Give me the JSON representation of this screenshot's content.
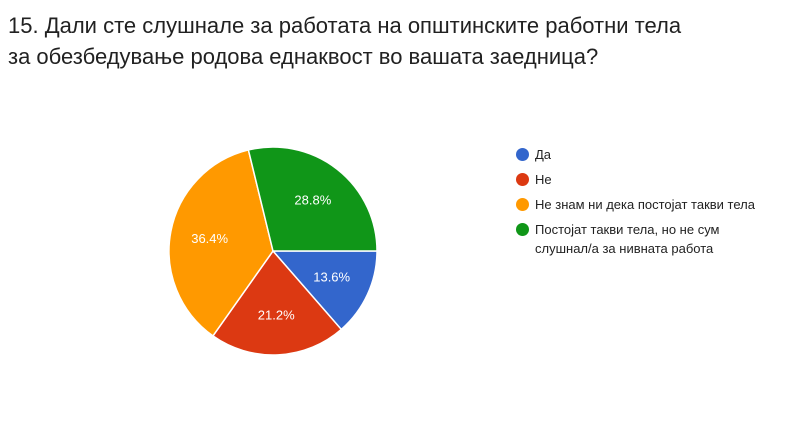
{
  "question": {
    "line1": "15. Дали сте слушнале за работата на општинските работни тела",
    "line2": "за обезбедување родова еднаквост во вашата заедница?"
  },
  "chart_data": {
    "type": "pie",
    "title": "",
    "legend_position": "right",
    "start_angle_deg": 90,
    "direction": "clockwise",
    "slices": [
      {
        "label": "Да",
        "value": 13.6,
        "display": "13.6%",
        "color": "#3366cc"
      },
      {
        "label": "Не",
        "value": 21.2,
        "display": "21.2%",
        "color": "#dc3912"
      },
      {
        "label": "Не знам ни дека постојат такви тела",
        "value": 36.4,
        "display": "36.4%",
        "color": "#ff9900"
      },
      {
        "label": "Постојат такви тела, но не сум",
        "label_line2": "слушнал/а за нивната работа",
        "value": 28.8,
        "display": "28.8%",
        "color": "#109618"
      }
    ]
  }
}
